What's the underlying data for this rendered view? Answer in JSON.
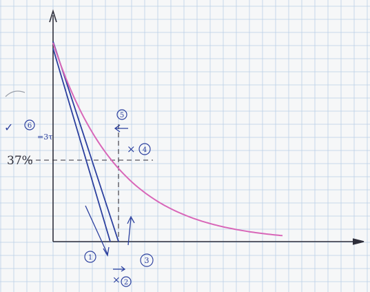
{
  "annotations": {
    "pct_label": "37%",
    "step1": "1",
    "step2": "2",
    "step3": "3",
    "step4": "4",
    "step5": "5",
    "step6": "6",
    "eq_note": "=3τ",
    "check": "✓",
    "x_mark": "×"
  },
  "colors": {
    "paper": "#f6f7f8",
    "grid": "#b9cfe6",
    "axis": "#2e2e3a",
    "tangent": "#2b3f9e",
    "curve": "#d866b8",
    "pencil": "#555a66",
    "ink": "#2b3f9e"
  },
  "chart_data": {
    "type": "line",
    "description_free": true,
    "curve": "exponential decay",
    "marked_level_percent": 37
  }
}
